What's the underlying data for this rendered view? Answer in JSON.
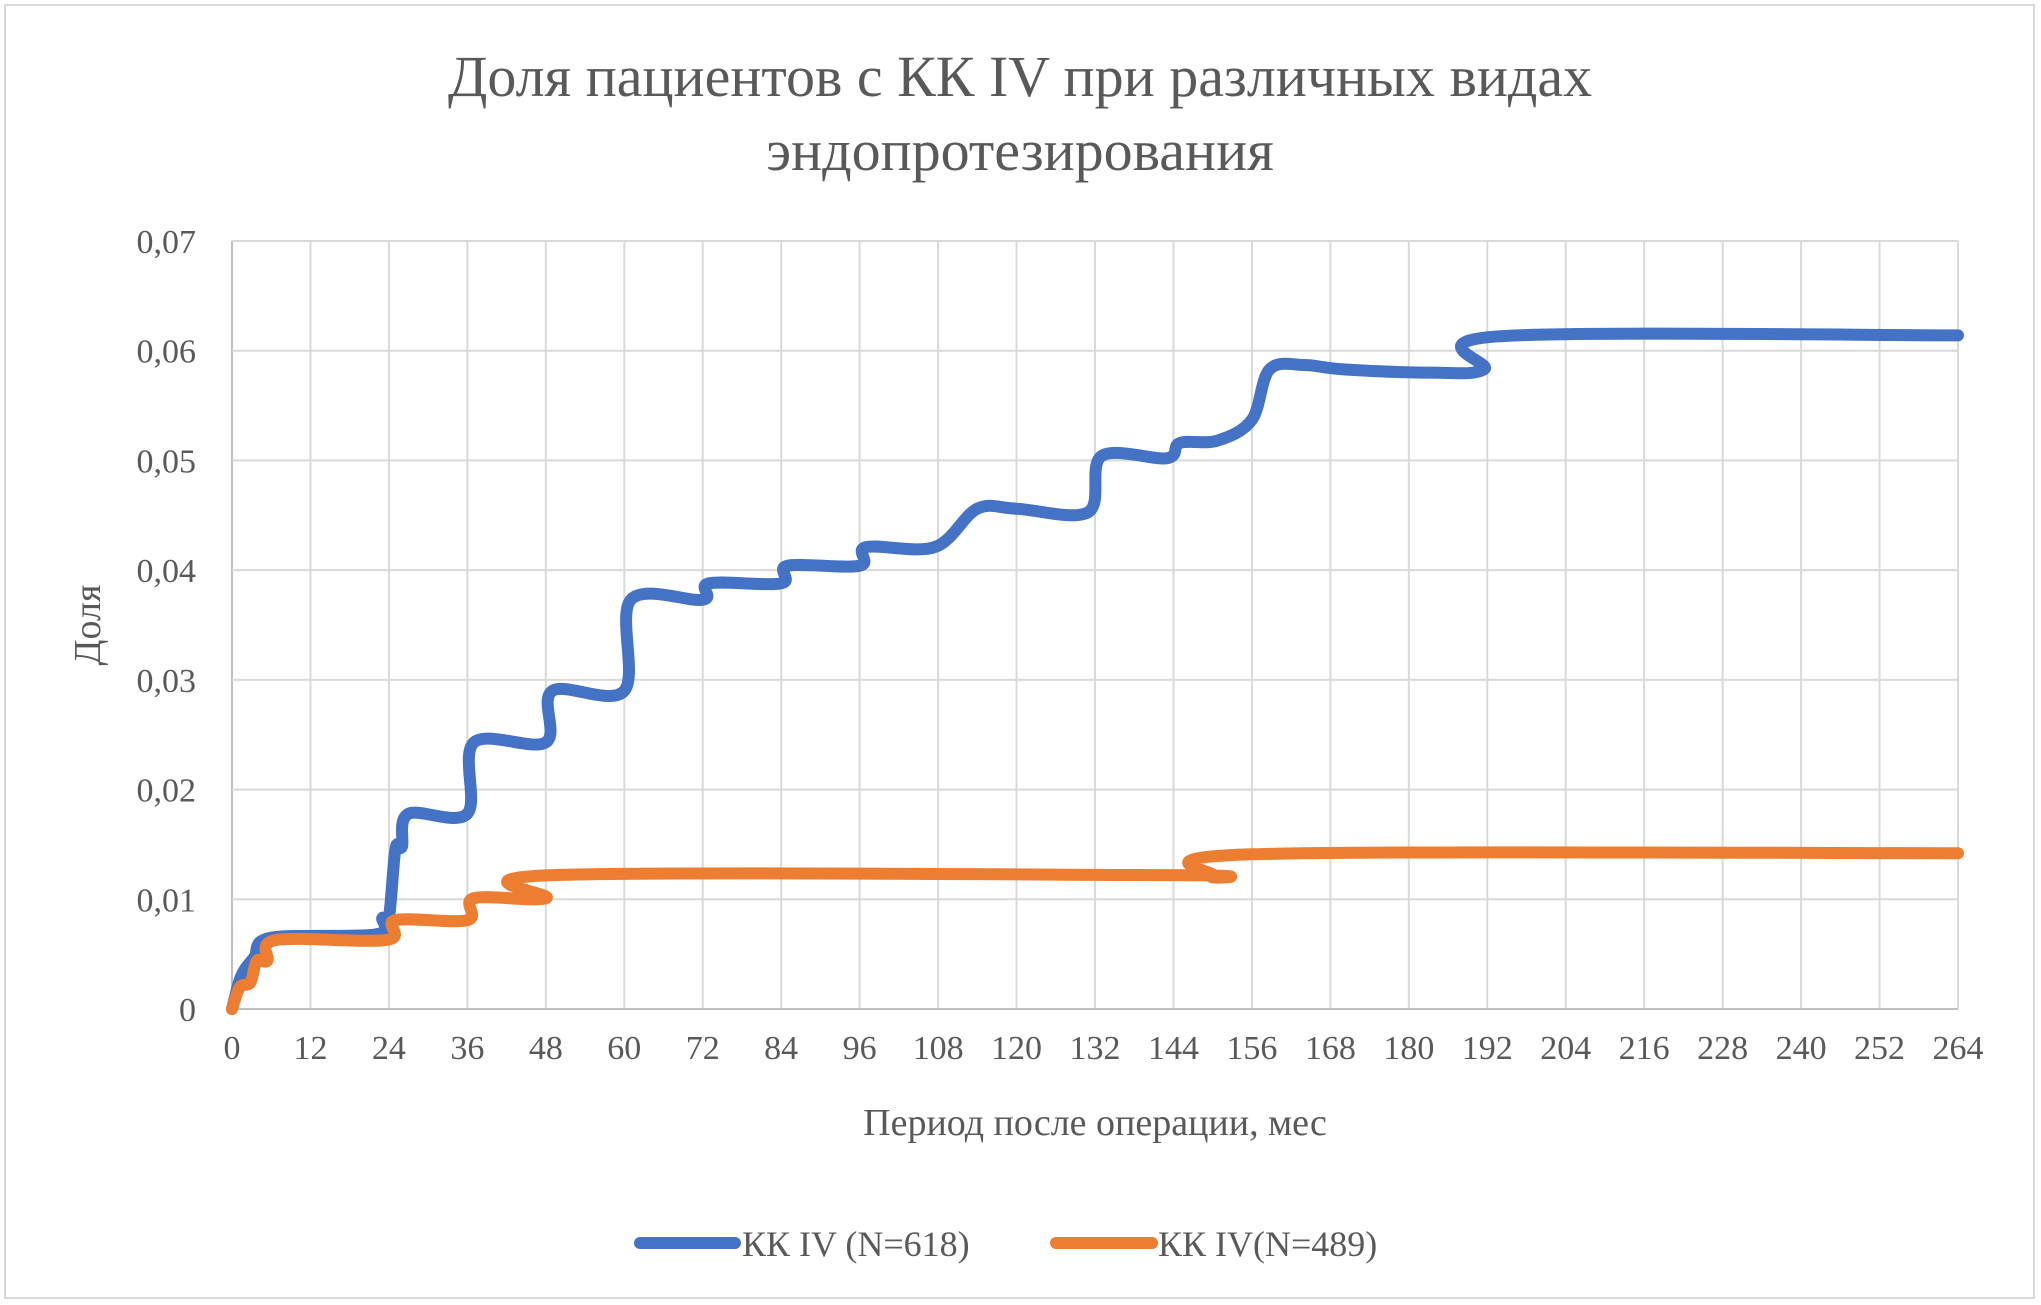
{
  "chart_data": {
    "type": "line",
    "title": [
      "Доля пациентов с КК IV при различных видах",
      "эндопротезирования"
    ],
    "xlabel": "Период после операции, мес",
    "ylabel": "Доля",
    "xlim": [
      0,
      264
    ],
    "ylim": [
      0,
      0.07
    ],
    "x_ticks": [
      "0",
      "12",
      "24",
      "36",
      "48",
      "60",
      "72",
      "84",
      "96",
      "108",
      "120",
      "132",
      "144",
      "156",
      "168",
      "180",
      "192",
      "204",
      "216",
      "228",
      "240",
      "252",
      "264"
    ],
    "y_ticks": [
      "0",
      "0,01",
      "0,02",
      "0,03",
      "0,04",
      "0,05",
      "0,06",
      "0,07"
    ],
    "grid": true,
    "smoothed": true,
    "legend_position": "bottom",
    "series": [
      {
        "name": "КК IV (N=618)",
        "color": "#4472C4",
        "points": [
          [
            0,
            0
          ],
          [
            1.4,
            0.003
          ],
          [
            3.4,
            0.0047
          ],
          [
            6,
            0.0065
          ],
          [
            22,
            0.0068
          ],
          [
            23,
            0.0083
          ],
          [
            24,
            0.0083
          ],
          [
            25,
            0.0146
          ],
          [
            26,
            0.0148
          ],
          [
            27,
            0.0178
          ],
          [
            36,
            0.0178
          ],
          [
            37,
            0.0243
          ],
          [
            48,
            0.0243
          ],
          [
            49,
            0.029
          ],
          [
            60,
            0.029
          ],
          [
            61,
            0.0373
          ],
          [
            72,
            0.0373
          ],
          [
            73,
            0.0388
          ],
          [
            84,
            0.0388
          ],
          [
            85,
            0.0404
          ],
          [
            96,
            0.0404
          ],
          [
            97,
            0.0421
          ],
          [
            107.5,
            0.0421
          ],
          [
            114,
            0.0456
          ],
          [
            120,
            0.0456
          ],
          [
            131,
            0.0453
          ],
          [
            133,
            0.0504
          ],
          [
            143,
            0.0502
          ],
          [
            145,
            0.0516
          ],
          [
            150.7,
            0.0518
          ],
          [
            156,
            0.0537
          ],
          [
            158.7,
            0.0583
          ],
          [
            164,
            0.0587
          ],
          [
            170,
            0.0583
          ],
          [
            183.5,
            0.058
          ],
          [
            191.5,
            0.0583
          ],
          [
            193.5,
            0.0613
          ],
          [
            264,
            0.0614
          ]
        ]
      },
      {
        "name": "КК IV(N=489)",
        "color": "#ED7D31",
        "points": [
          [
            0,
            0
          ],
          [
            1.2,
            0.002
          ],
          [
            2.8,
            0.0024
          ],
          [
            3.8,
            0.0044
          ],
          [
            5.4,
            0.0044
          ],
          [
            6.8,
            0.0063
          ],
          [
            23.7,
            0.0063
          ],
          [
            25,
            0.0081
          ],
          [
            36,
            0.0081
          ],
          [
            37,
            0.0101
          ],
          [
            48,
            0.0101
          ],
          [
            49,
            0.0122
          ],
          [
            144,
            0.0122
          ],
          [
            150,
            0.0121
          ],
          [
            156,
            0.0141
          ],
          [
            264,
            0.0142
          ]
        ]
      }
    ]
  }
}
